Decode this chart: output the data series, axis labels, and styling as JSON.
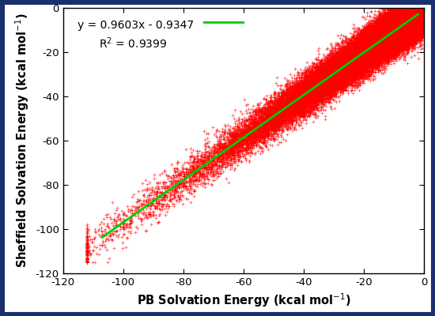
{
  "slope": 0.9603,
  "intercept": -0.9347,
  "r_squared": 0.9399,
  "equation_text": "y = 0.9603x - 0.9347",
  "r2_text": "R$^2$ = 0.9399",
  "xlim": [
    -120,
    0
  ],
  "ylim": [
    -120,
    0
  ],
  "xticks": [
    -120,
    -100,
    -80,
    -60,
    -40,
    -20,
    0
  ],
  "yticks": [
    -120,
    -100,
    -80,
    -60,
    -40,
    -20,
    0
  ],
  "xlabel": "PB Solvation Energy (kcal mol$^{-1}$)",
  "ylabel": "Sheffield Solvation Energy (kcal mol$^{-1}$)",
  "scatter_color": "#ff0000",
  "line_color": "#00cc00",
  "marker": "+",
  "marker_size": 3.5,
  "marker_linewidth": 0.7,
  "line_width": 2.0,
  "n_points": 64000,
  "background_color": "#ffffff",
  "border_color": "#1a2f6e",
  "border_linewidth": 8,
  "annotation_fontsize": 10,
  "axis_label_fontsize": 10.5,
  "tick_fontsize": 9.5,
  "seed": 42
}
